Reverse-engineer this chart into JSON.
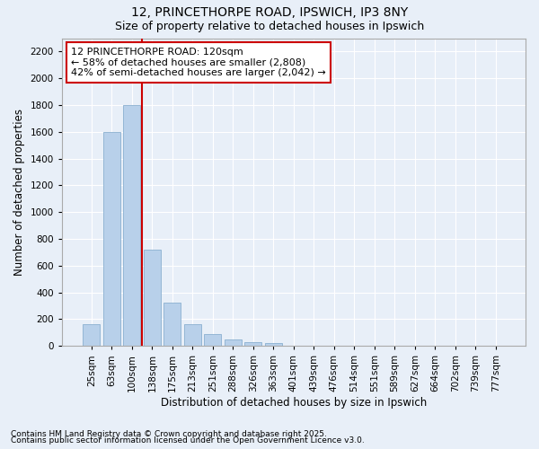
{
  "title1": "12, PRINCETHORPE ROAD, IPSWICH, IP3 8NY",
  "title2": "Size of property relative to detached houses in Ipswich",
  "xlabel": "Distribution of detached houses by size in Ipswich",
  "ylabel": "Number of detached properties",
  "categories": [
    "25sqm",
    "63sqm",
    "100sqm",
    "138sqm",
    "175sqm",
    "213sqm",
    "251sqm",
    "288sqm",
    "326sqm",
    "363sqm",
    "401sqm",
    "439sqm",
    "476sqm",
    "514sqm",
    "551sqm",
    "589sqm",
    "627sqm",
    "664sqm",
    "702sqm",
    "739sqm",
    "777sqm"
  ],
  "values": [
    160,
    1600,
    1800,
    720,
    325,
    160,
    90,
    50,
    30,
    20,
    0,
    0,
    0,
    0,
    0,
    0,
    0,
    0,
    0,
    0,
    0
  ],
  "bar_color": "#b8d0ea",
  "bar_edge_color": "#8ab0d0",
  "vline_x": 2.5,
  "vline_color": "#cc0000",
  "annotation_box_text": "12 PRINCETHORPE ROAD: 120sqm\n← 58% of detached houses are smaller (2,808)\n42% of semi-detached houses are larger (2,042) →",
  "ylim": [
    0,
    2300
  ],
  "yticks": [
    0,
    200,
    400,
    600,
    800,
    1000,
    1200,
    1400,
    1600,
    1800,
    2000,
    2200
  ],
  "footnote1": "Contains HM Land Registry data © Crown copyright and database right 2025.",
  "footnote2": "Contains public sector information licensed under the Open Government Licence v3.0.",
  "background_color": "#e8eff8",
  "title1_fontsize": 10,
  "title2_fontsize": 9,
  "axis_label_fontsize": 8.5,
  "tick_fontsize": 7.5,
  "annotation_fontsize": 8,
  "footnote_fontsize": 6.5
}
